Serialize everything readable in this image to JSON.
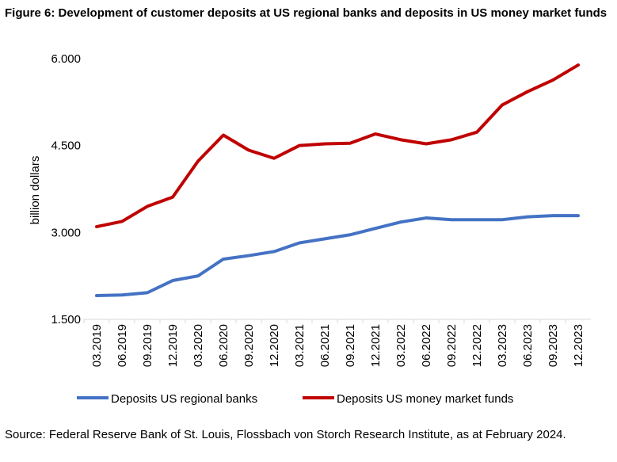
{
  "chart_data": {
    "type": "line",
    "title": "Figure 6: Development of customer deposits at US regional banks and deposits in US money market funds",
    "xlabel": "",
    "ylabel": "billion dollars",
    "ylim": [
      1500,
      6000
    ],
    "yticks": [
      "1.500",
      "3.000",
      "4.500",
      "6.000"
    ],
    "ytick_values": [
      1500,
      3000,
      4500,
      6000
    ],
    "grid": false,
    "legend_position": "bottom",
    "categories": [
      "03.2019",
      "06.2019",
      "09.2019",
      "12.2019",
      "03.2020",
      "06.2020",
      "09.2020",
      "12.2020",
      "03.2021",
      "06.2021",
      "09.2021",
      "12.2021",
      "03.2022",
      "06.2022",
      "09.2022",
      "12.2022",
      "03.2023",
      "06.2023",
      "09.2023",
      "12.2023"
    ],
    "series": [
      {
        "name": "Deposits US regional banks",
        "color": "#4472C4",
        "values": [
          1910,
          1920,
          1960,
          2170,
          2250,
          2540,
          2600,
          2670,
          2820,
          2890,
          2960,
          3070,
          3180,
          3250,
          3220,
          3220,
          3220,
          3270,
          3290,
          3290
        ]
      },
      {
        "name": "Deposits US money market funds",
        "color": "#C00000",
        "values": [
          3100,
          3190,
          3450,
          3610,
          4230,
          4680,
          4420,
          4280,
          4500,
          4530,
          4540,
          4700,
          4600,
          4530,
          4600,
          4730,
          5200,
          5430,
          5630,
          5890
        ]
      }
    ],
    "source": "Source: Federal Reserve Bank of St. Louis, Flossbach von Storch Research Institute, as at February 2024."
  }
}
